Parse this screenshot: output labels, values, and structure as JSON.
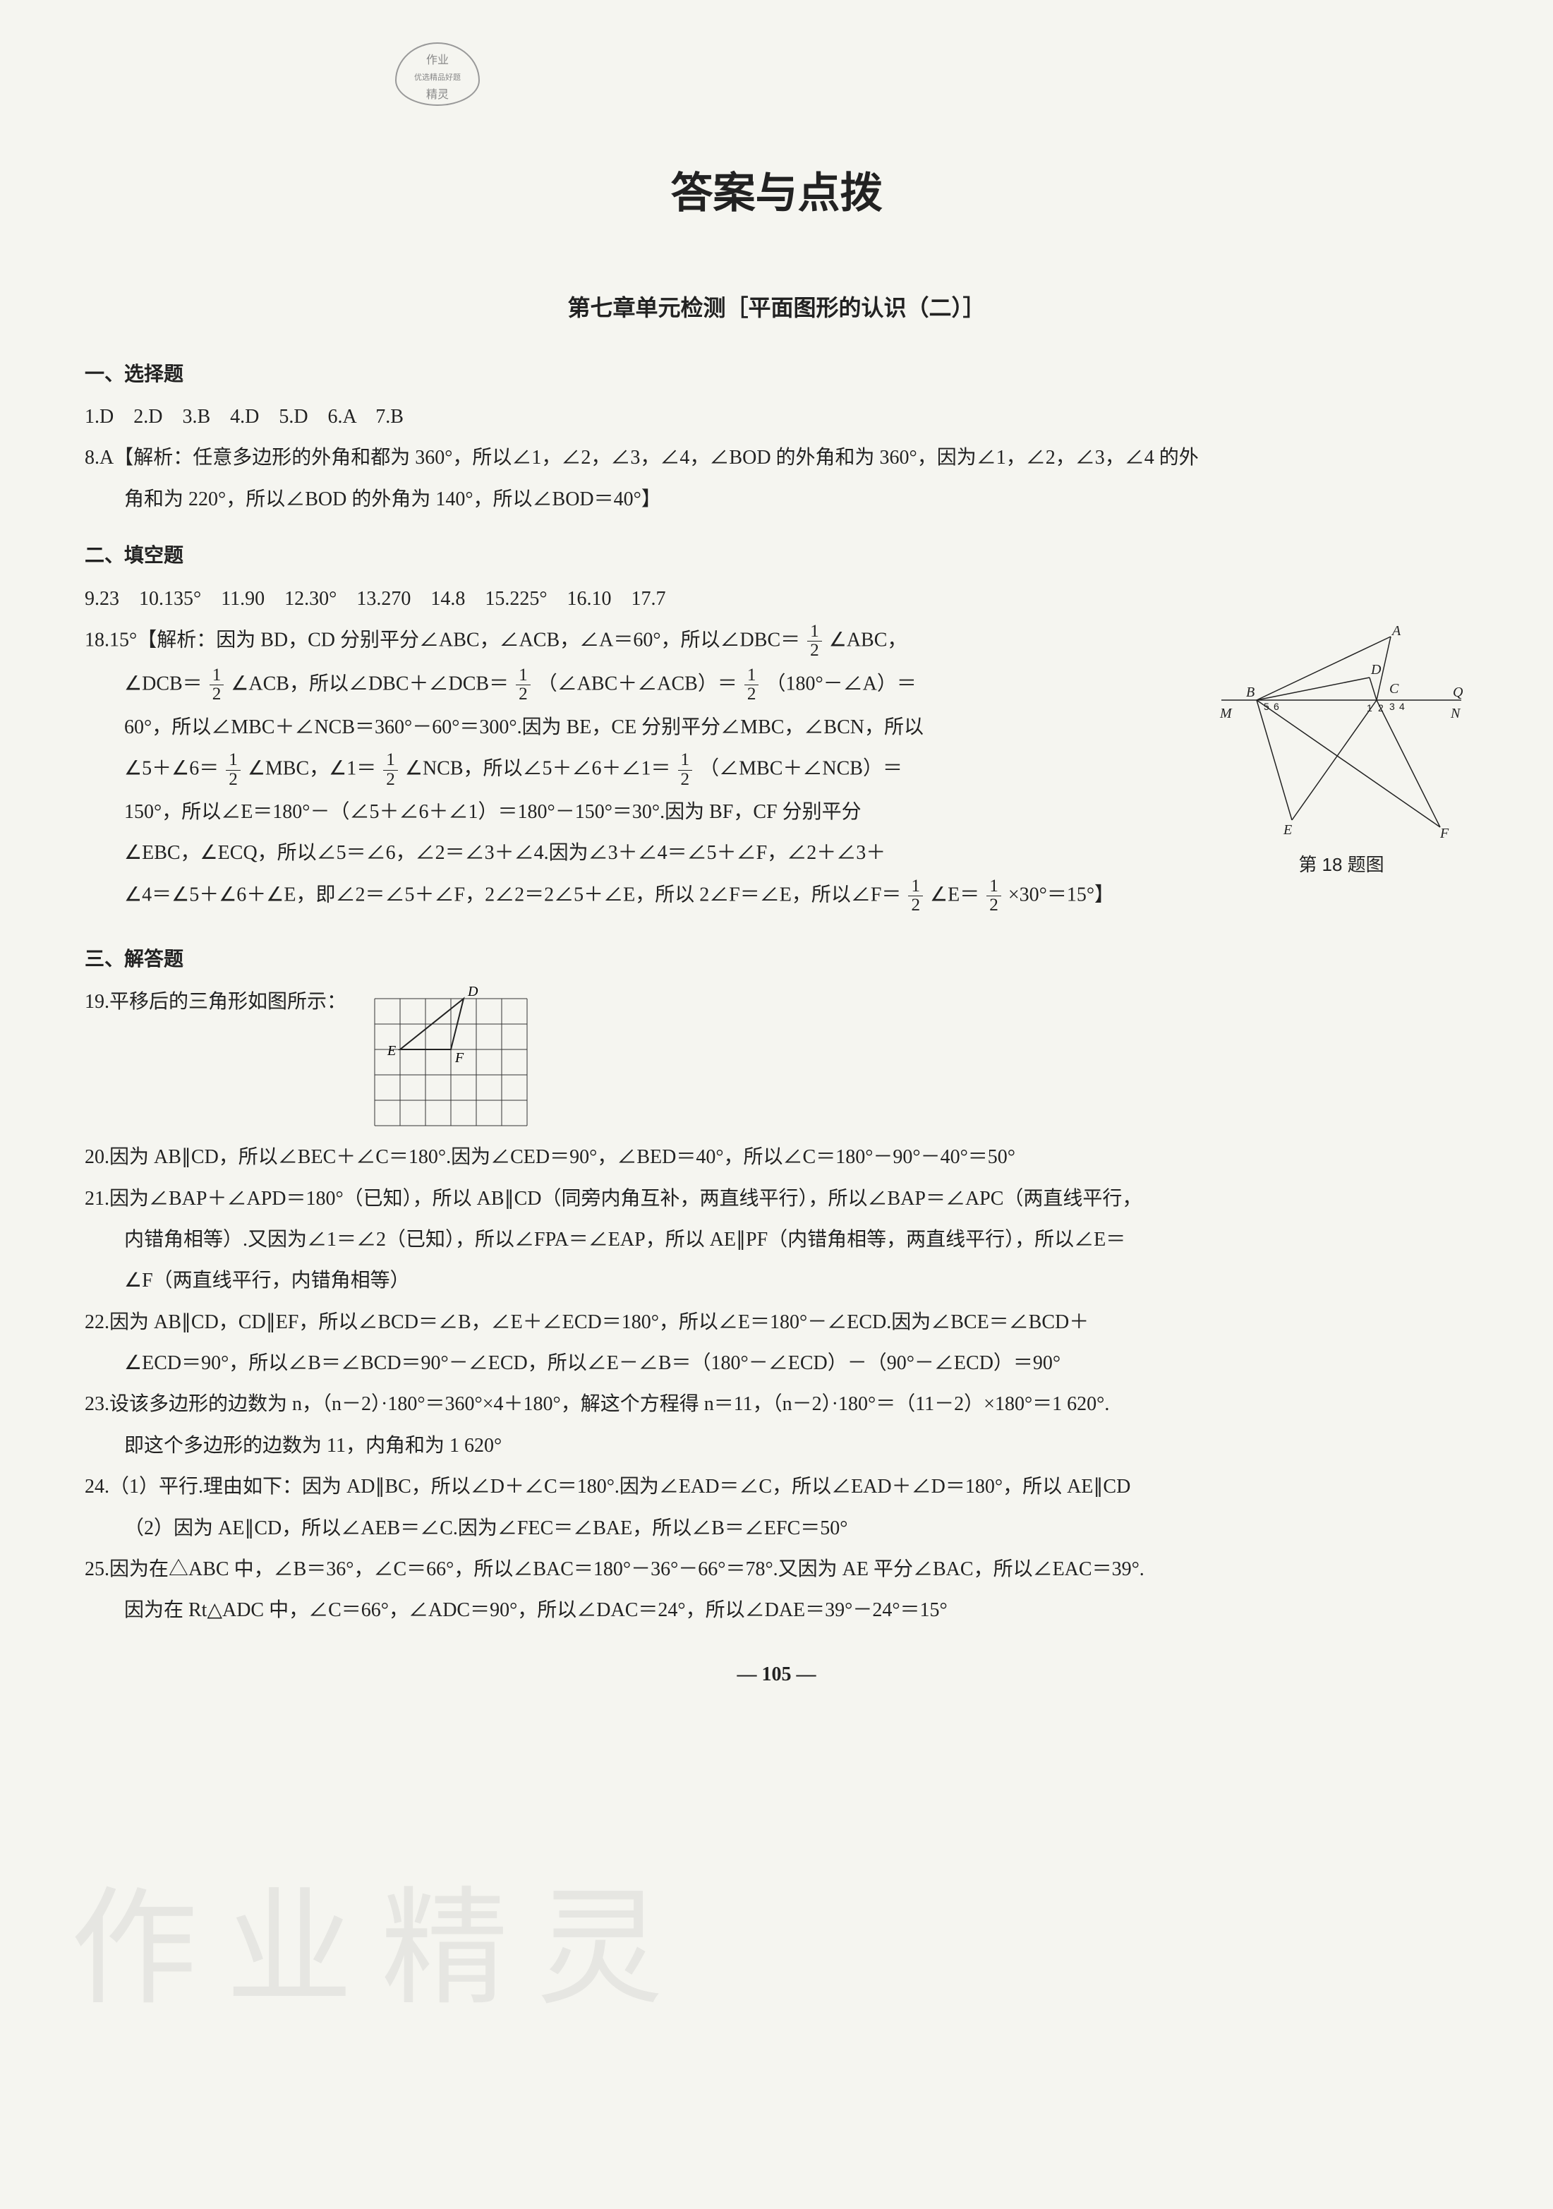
{
  "stamp": {
    "line1": "作业",
    "line2": "优选精品好题",
    "line3": "精灵"
  },
  "titles": {
    "main": "答案与点拨",
    "sub": "第七章单元检测［平面图形的认识（二）］"
  },
  "sections": {
    "s1": "一、选择题",
    "s2": "二、填空题",
    "s3": "三、解答题"
  },
  "mc": {
    "line": "1.D　2.D　3.B　4.D　5.D　6.A　7.B"
  },
  "q8": {
    "head": "8.A【解析：任意多边形的外角和都为 360°，所以∠1，∠2，∠3，∠4，∠BOD 的外角和为 360°，因为∠1，∠2，∠3，∠4 的外",
    "cont": "角和为 220°，所以∠BOD 的外角为 140°，所以∠BOD＝40°】"
  },
  "fill": {
    "line": "9.23　10.135°　11.90　12.30°　13.270　14.8　15.225°　16.10　17.7"
  },
  "q18": {
    "l1a": "18.15°【解析：因为 BD，CD 分别平分∠ABC，∠ACB，∠A＝60°，所以∠DBC＝",
    "l1b": "∠ABC，",
    "l2a": "∠DCB＝",
    "l2b": "∠ACB，所以∠DBC＋∠DCB＝",
    "l2c": "（∠ABC＋∠ACB）＝",
    "l2d": "（180°－∠A）＝",
    "l3": "60°，所以∠MBC＋∠NCB＝360°－60°＝300°.因为 BE，CE 分别平分∠MBC，∠BCN，所以",
    "l4a": "∠5＋∠6＝",
    "l4b": "∠MBC，∠1＝",
    "l4c": "∠NCB，所以∠5＋∠6＋∠1＝",
    "l4d": "（∠MBC＋∠NCB）＝",
    "l5": "150°，所以∠E＝180°－（∠5＋∠6＋∠1）＝180°－150°＝30°.因为 BF，CF 分别平分",
    "l6": "∠EBC，∠ECQ，所以∠5＝∠6，∠2＝∠3＋∠4.因为∠3＋∠4＝∠5＋∠F，∠2＋∠3＋",
    "l7a": "∠4＝∠5＋∠6＋∠E，即∠2＝∠5＋∠F，2∠2＝2∠5＋∠E，所以 2∠F＝∠E，所以∠F＝",
    "l7b": "∠E＝",
    "l7c": "×30°＝15°】",
    "caption": "第 18 题图",
    "labels": {
      "A": "A",
      "B": "B",
      "C": "C",
      "D": "D",
      "E": "E",
      "F": "F",
      "M": "M",
      "N": "N",
      "Q": "Q"
    },
    "small_nums": [
      "5",
      "6",
      "1",
      "2",
      "3",
      "4"
    ]
  },
  "q19": {
    "text": "19.平移后的三角形如图所示：",
    "grid": {
      "rows": 5,
      "cols": 6,
      "cell": 36
    },
    "labels": {
      "D": "D",
      "E": "E",
      "F": "F"
    },
    "points": {
      "D": [
        3.5,
        0
      ],
      "E": [
        1,
        2
      ],
      "F": [
        3,
        2
      ]
    }
  },
  "q20": "20.因为 AB∥CD，所以∠BEC＋∠C＝180°.因为∠CED＝90°，∠BED＝40°，所以∠C＝180°－90°－40°＝50°",
  "q21": {
    "l1": "21.因为∠BAP＋∠APD＝180°（已知），所以 AB∥CD（同旁内角互补，两直线平行），所以∠BAP＝∠APC（两直线平行，",
    "l2": "内错角相等）.又因为∠1＝∠2（已知），所以∠FPA＝∠EAP，所以 AE∥PF（内错角相等，两直线平行），所以∠E＝",
    "l3": "∠F（两直线平行，内错角相等）"
  },
  "q22": {
    "l1": "22.因为 AB∥CD，CD∥EF，所以∠BCD＝∠B，∠E＋∠ECD＝180°，所以∠E＝180°－∠ECD.因为∠BCE＝∠BCD＋",
    "l2": "∠ECD＝90°，所以∠B＝∠BCD＝90°－∠ECD，所以∠E－∠B＝（180°－∠ECD）－（90°－∠ECD）＝90°"
  },
  "q23": {
    "l1": "23.设该多边形的边数为 n，（n－2）·180°＝360°×4＋180°，解这个方程得 n＝11，（n－2）·180°＝（11－2）×180°＝1 620°.",
    "l2": "即这个多边形的边数为 11，内角和为 1 620°"
  },
  "q24": {
    "l1": "24.（1）平行.理由如下：因为 AD∥BC，所以∠D＋∠C＝180°.因为∠EAD＝∠C，所以∠EAD＋∠D＝180°，所以 AE∥CD",
    "l2": "（2）因为 AE∥CD，所以∠AEB＝∠C.因为∠FEC＝∠BAE，所以∠B＝∠EFC＝50°"
  },
  "q25": {
    "l1": "25.因为在△ABC 中，∠B＝36°，∠C＝66°，所以∠BAC＝180°－36°－66°＝78°.又因为 AE 平分∠BAC，所以∠EAC＝39°.",
    "l2": "因为在 Rt△ADC 中，∠C＝66°，∠ADC＝90°，所以∠DAC＝24°，所以∠DAE＝39°－24°＝15°"
  },
  "pagenum": "— 105 —",
  "watermark": "作业精灵",
  "colors": {
    "text": "#222",
    "bg": "#f5f5f0",
    "grid": "#333"
  }
}
